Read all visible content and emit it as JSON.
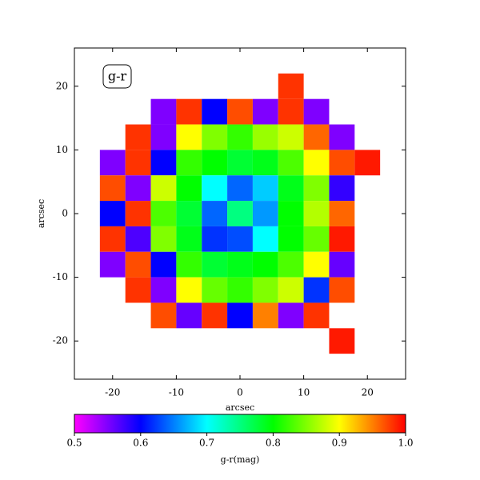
{
  "chart_data": {
    "type": "heatmap",
    "annotation": "g-r",
    "xlabel": "arcsec",
    "ylabel": "arcsec",
    "xlim": [
      -26,
      26
    ],
    "ylim": [
      -26,
      26
    ],
    "xticks": [
      -20,
      -10,
      0,
      10,
      20
    ],
    "yticks": [
      -20,
      -10,
      0,
      10,
      20
    ],
    "x": [
      -24,
      -20,
      -16,
      -12,
      -8,
      -4,
      0,
      4,
      8,
      12,
      16,
      20,
      24
    ],
    "y": [
      24,
      20,
      16,
      12,
      8,
      4,
      0,
      -4,
      -8,
      -12,
      -16,
      -20,
      -24
    ],
    "cell_size": 4,
    "values": [
      [
        null,
        null,
        null,
        null,
        null,
        null,
        null,
        null,
        null,
        null,
        null,
        null,
        null
      ],
      [
        null,
        null,
        null,
        null,
        null,
        null,
        null,
        null,
        0.98,
        null,
        null,
        null,
        null
      ],
      [
        null,
        null,
        null,
        0.55,
        0.98,
        0.6,
        0.97,
        0.55,
        0.98,
        0.55,
        null,
        null,
        null
      ],
      [
        null,
        null,
        0.98,
        0.55,
        0.9,
        0.85,
        0.82,
        0.86,
        0.88,
        0.96,
        0.55,
        null,
        null
      ],
      [
        null,
        0.55,
        0.98,
        0.6,
        0.82,
        0.8,
        0.78,
        0.79,
        0.83,
        0.9,
        0.97,
        0.99,
        null
      ],
      [
        null,
        0.97,
        0.55,
        0.88,
        0.8,
        0.7,
        0.64,
        0.68,
        0.79,
        0.85,
        0.58,
        null,
        null
      ],
      [
        null,
        0.6,
        0.98,
        0.83,
        0.78,
        0.64,
        0.75,
        0.66,
        0.8,
        0.87,
        0.96,
        null,
        null
      ],
      [
        null,
        0.98,
        0.57,
        0.85,
        0.79,
        0.62,
        0.63,
        0.7,
        0.8,
        0.84,
        0.99,
        null,
        null
      ],
      [
        null,
        0.55,
        0.97,
        0.6,
        0.82,
        0.78,
        0.79,
        0.8,
        0.83,
        0.9,
        0.56,
        null,
        null
      ],
      [
        null,
        null,
        0.98,
        0.55,
        0.9,
        0.84,
        0.82,
        0.85,
        0.88,
        0.62,
        0.97,
        null,
        null
      ],
      [
        null,
        null,
        null,
        0.97,
        0.56,
        0.98,
        0.6,
        0.95,
        0.55,
        0.98,
        null,
        null,
        null
      ],
      [
        null,
        null,
        null,
        null,
        null,
        null,
        null,
        null,
        null,
        null,
        0.99,
        null,
        null
      ],
      [
        null,
        null,
        null,
        null,
        null,
        null,
        null,
        null,
        null,
        null,
        null,
        null,
        null
      ]
    ],
    "colorbar": {
      "label": "g-r(mag)",
      "clim": [
        0.5,
        1
      ],
      "ticks": [
        0.5,
        0.6,
        0.7,
        0.8,
        0.9,
        {
          "value": 1,
          "label": "1.0"
        }
      ],
      "colormap": [
        "#ff00ff",
        "#0000ff",
        "#00ffff",
        "#00ff00",
        "#ffff00",
        "#ff0000"
      ]
    }
  }
}
